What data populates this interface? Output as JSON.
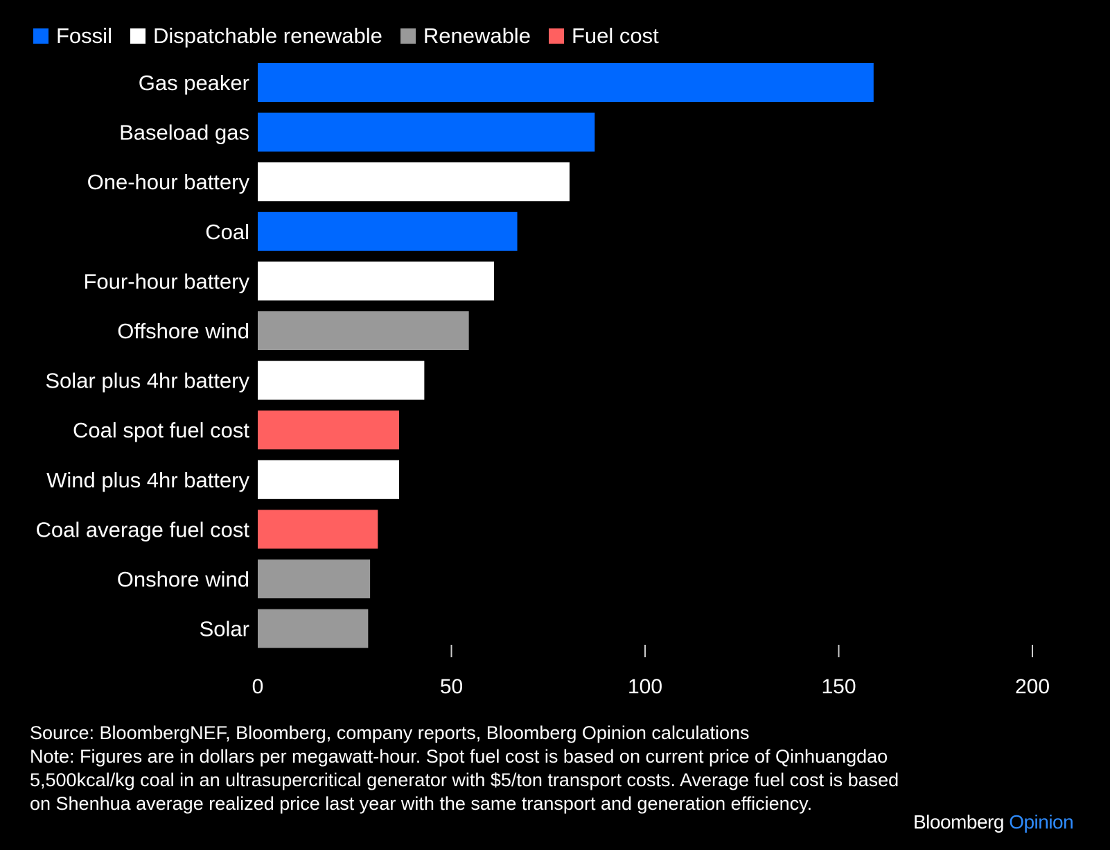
{
  "chart_data": {
    "type": "bar",
    "orientation": "horizontal",
    "categories": [
      "Gas peaker",
      "Baseload gas",
      "One-hour battery",
      "Coal",
      "Four-hour battery",
      "Offshore wind",
      "Solar plus 4hr battery",
      "Coal spot fuel cost",
      "Wind plus 4hr battery",
      "Coal average fuel cost",
      "Onshore wind",
      "Solar"
    ],
    "values": [
      159,
      87,
      80.5,
      67,
      61,
      54.5,
      43,
      36.5,
      36.5,
      31,
      29,
      28.5
    ],
    "groups": [
      "Fossil",
      "Fossil",
      "Dispatchable renewable",
      "Fossil",
      "Dispatchable renewable",
      "Renewable",
      "Dispatchable renewable",
      "Fuel cost",
      "Dispatchable renewable",
      "Fuel cost",
      "Renewable",
      "Renewable"
    ],
    "legend": [
      {
        "name": "Fossil",
        "color": "#0068ff"
      },
      {
        "name": "Dispatchable renewable",
        "color": "#ffffff"
      },
      {
        "name": "Renewable",
        "color": "#999999"
      },
      {
        "name": "Fuel cost",
        "color": "#ff6060"
      }
    ],
    "legend_position": "top-left",
    "xlim": [
      0,
      200
    ],
    "xticks": [
      0,
      50,
      100,
      150,
      200
    ],
    "xtick_labels": [
      "0",
      "50",
      "100",
      "150",
      "200"
    ],
    "grid": false,
    "title": "",
    "xlabel": "",
    "ylabel": ""
  },
  "notes": {
    "source": "Source: BloombergNEF, Bloomberg, company reports, Bloomberg Opinion calculations",
    "note": "Note: Figures are in dollars per megawatt-hour. Spot fuel cost is based on current price of Qinhuangdao 5,500kcal/kg coal in an ultrasupercritical generator with $5/ton transport costs. Average fuel cost is based on Shenhua average realized price last year with the same transport and generation efficiency."
  },
  "brand": {
    "name": "Bloomberg",
    "suffix": "Opinion"
  }
}
